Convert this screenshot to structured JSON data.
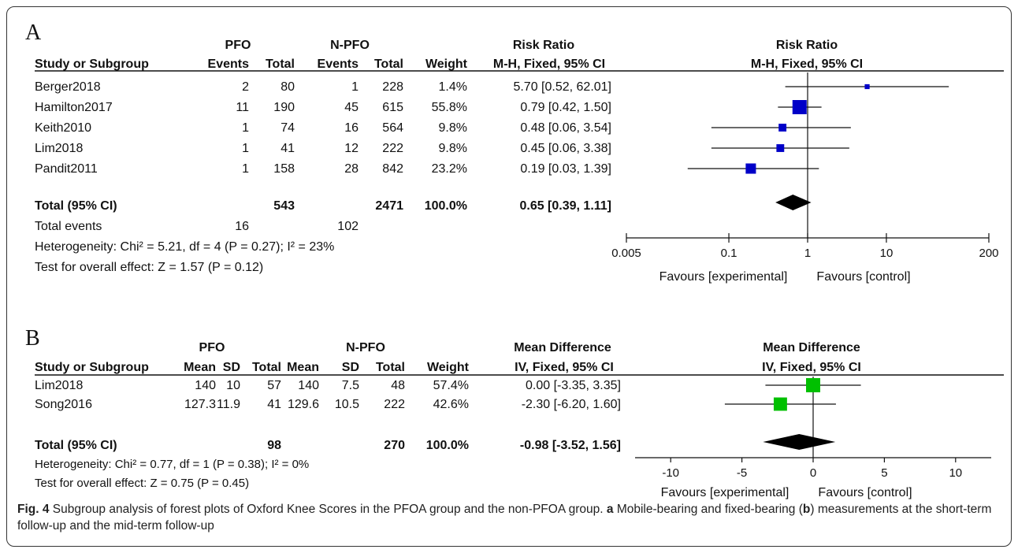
{
  "figure": {
    "caption_label": "Fig. 4",
    "caption_text": "Subgroup analysis of forest plots of Oxford Knee Scores in the PFOA group and the non-PFOA group.",
    "caption_a": "a",
    "caption_mid": "Mobile-bearing and fixed-bearing (",
    "caption_b": "b",
    "caption_end": ") measurements at the short-term follow-up and the mid-term follow-up"
  },
  "chart_data": [
    {
      "type": "forest",
      "panel": "A",
      "group1": "PFO",
      "group2": "N-PFO",
      "headers": [
        "Study or Subgroup",
        "Events",
        "Total",
        "Events",
        "Total",
        "Weight",
        "M-H, Fixed, 95% CI"
      ],
      "effect_header": "Risk Ratio",
      "effect_header_sub": "M-H, Fixed, 95% CI",
      "plot_header": "Risk Ratio",
      "plot_header_sub": "M-H, Fixed, 95% CI",
      "studies": [
        {
          "name": "Berger2018",
          "e1": "2",
          "n1": "80",
          "e2": "1",
          "n2": "228",
          "weight": "1.4%",
          "ci_text": "5.70 [0.52, 62.01]",
          "est": 5.7,
          "lo": 0.52,
          "hi": 62.01,
          "w": 1.4
        },
        {
          "name": "Hamilton2017",
          "e1": "11",
          "n1": "190",
          "e2": "45",
          "n2": "615",
          "weight": "55.8%",
          "ci_text": "0.79 [0.42, 1.50]",
          "est": 0.79,
          "lo": 0.42,
          "hi": 1.5,
          "w": 55.8
        },
        {
          "name": "Keith2010",
          "e1": "1",
          "n1": "74",
          "e2": "16",
          "n2": "564",
          "weight": "9.8%",
          "ci_text": "0.48 [0.06, 3.54]",
          "est": 0.48,
          "lo": 0.06,
          "hi": 3.54,
          "w": 9.8
        },
        {
          "name": "Lim2018",
          "e1": "1",
          "n1": "41",
          "e2": "12",
          "n2": "222",
          "weight": "9.8%",
          "ci_text": "0.45 [0.06, 3.38]",
          "est": 0.45,
          "lo": 0.06,
          "hi": 3.38,
          "w": 9.8
        },
        {
          "name": "Pandit2011",
          "e1": "1",
          "n1": "158",
          "e2": "28",
          "n2": "842",
          "weight": "23.2%",
          "ci_text": "0.19 [0.03, 1.39]",
          "est": 0.19,
          "lo": 0.03,
          "hi": 1.39,
          "w": 23.2
        }
      ],
      "total": {
        "label": "Total (95% CI)",
        "n1": "543",
        "n2": "2471",
        "weight": "100.0%",
        "ci_text": "0.65 [0.39, 1.11]",
        "est": 0.65,
        "lo": 0.39,
        "hi": 1.11
      },
      "total_events": {
        "label": "Total events",
        "e1": "16",
        "e2": "102"
      },
      "heterogeneity": "Heterogeneity: Chi² = 5.21, df = 4 (P = 0.27); I² = 23%",
      "overall_effect": "Test for overall effect: Z = 1.57 (P = 0.12)",
      "axis": {
        "scale": "log",
        "min": 0.005,
        "max": 200,
        "ticks": [
          "0.005",
          "0.1",
          "1",
          "10",
          "200"
        ],
        "tick_values": [
          0.005,
          0.1,
          1,
          10,
          200
        ]
      },
      "favours_left": "Favours [experimental]",
      "favours_right": "Favours [control]",
      "marker_color": "#0000c8"
    },
    {
      "type": "forest",
      "panel": "B",
      "group1": "PFO",
      "group2": "N-PFO",
      "headers": [
        "Study or Subgroup",
        "Mean",
        "SD",
        "Total",
        "Mean",
        "SD",
        "Total",
        "Weight",
        "IV, Fixed, 95% CI"
      ],
      "effect_header": "Mean Difference",
      "effect_header_sub": "IV, Fixed, 95% CI",
      "plot_header": "Mean Difference",
      "plot_header_sub": "IV, Fixed, 95% CI",
      "studies": [
        {
          "name": "Lim2018",
          "m1": "140",
          "sd1": "10",
          "n1": "57",
          "m2": "140",
          "sd2": "7.5",
          "n2": "48",
          "weight": "57.4%",
          "ci_text": "0.00 [-3.35, 3.35]",
          "est": 0.0,
          "lo": -3.35,
          "hi": 3.35,
          "w": 57.4
        },
        {
          "name": "Song2016",
          "m1": "127.3",
          "sd1": "11.9",
          "n1": "41",
          "m2": "129.6",
          "sd2": "10.5",
          "n2": "222",
          "weight": "42.6%",
          "ci_text": "-2.30 [-6.20, 1.60]",
          "est": -2.3,
          "lo": -6.2,
          "hi": 1.6,
          "w": 42.6
        }
      ],
      "total": {
        "label": "Total (95% CI)",
        "n1": "98",
        "n2": "270",
        "weight": "100.0%",
        "ci_text": "-0.98 [-3.52, 1.56]",
        "est": -0.98,
        "lo": -3.52,
        "hi": 1.56
      },
      "heterogeneity": "Heterogeneity: Chi² = 0.77, df = 1 (P = 0.38); I² = 0%",
      "overall_effect": "Test for overall effect: Z = 0.75 (P = 0.45)",
      "axis": {
        "scale": "linear",
        "min": -10,
        "max": 10,
        "ticks": [
          "-10",
          "-5",
          "0",
          "5",
          "10"
        ],
        "tick_values": [
          -10,
          -5,
          0,
          5,
          10
        ]
      },
      "favours_left": "Favours [experimental]",
      "favours_right": "Favours [control]",
      "marker_color": "#00c000"
    }
  ]
}
